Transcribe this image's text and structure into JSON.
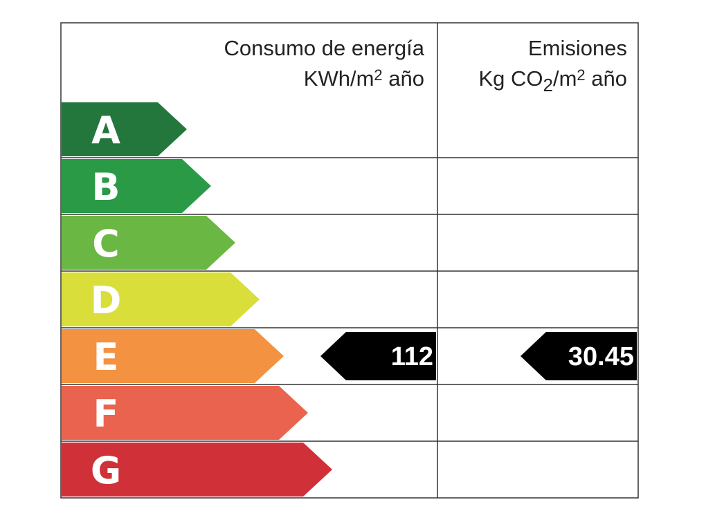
{
  "header": {
    "energy": {
      "title": "Consumo de energía",
      "unit": [
        "KWh/m",
        "2",
        " año"
      ]
    },
    "emissions": {
      "title": "Emisiones",
      "unit": [
        "Kg CO",
        "2",
        "/m",
        "2",
        " año"
      ]
    }
  },
  "ratings": [
    {
      "letter": "A",
      "color": "#23763c"
    },
    {
      "letter": "B",
      "color": "#2a9a47"
    },
    {
      "letter": "C",
      "color": "#6ab744"
    },
    {
      "letter": "D",
      "color": "#d9de3a"
    },
    {
      "letter": "E",
      "color": "#f39240",
      "energy": 112,
      "emissions": 30.45
    },
    {
      "letter": "F",
      "color": "#ea634e"
    },
    {
      "letter": "G",
      "color": "#d03038"
    }
  ]
}
